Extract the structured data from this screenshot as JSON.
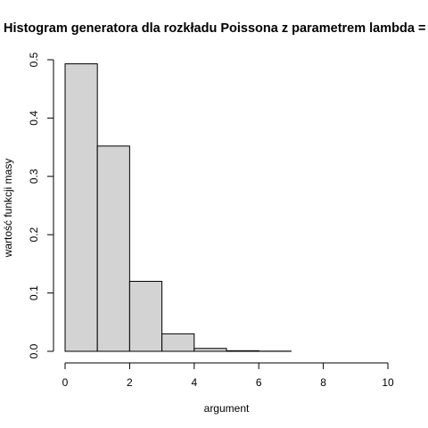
{
  "chart_data": {
    "type": "bar",
    "title": "Histogram generatora dla rozkładu Poissona z parametrem lambda =",
    "xlabel": "argument",
    "ylabel": "wartość funkcji masy",
    "bins": [
      {
        "x0": 0,
        "x1": 1,
        "value": 0.493
      },
      {
        "x0": 1,
        "x1": 2,
        "value": 0.352
      },
      {
        "x0": 2,
        "x1": 3,
        "value": 0.12
      },
      {
        "x0": 3,
        "x1": 4,
        "value": 0.03
      },
      {
        "x0": 4,
        "x1": 5,
        "value": 0.005
      },
      {
        "x0": 5,
        "x1": 6,
        "value": 0.001
      },
      {
        "x0": 6,
        "x1": 7,
        "value": 0.0003
      },
      {
        "x0": 7,
        "x1": 8,
        "value": 0.0
      },
      {
        "x0": 8,
        "x1": 9,
        "value": 0.0
      },
      {
        "x0": 9,
        "x1": 10,
        "value": 0.0
      }
    ],
    "xticks": [
      0,
      2,
      4,
      6,
      8,
      10
    ],
    "xtick_labels": [
      "0",
      "2",
      "4",
      "6",
      "8",
      "10"
    ],
    "yticks": [
      0.0,
      0.1,
      0.2,
      0.3,
      0.4,
      0.5
    ],
    "ytick_labels": [
      "0.0",
      "0.1",
      "0.2",
      "0.3",
      "0.4",
      "0.5"
    ],
    "xlim": [
      0,
      10
    ],
    "ylim": [
      0,
      0.5
    ],
    "grid": false,
    "bar_fill": "#d3d3d3",
    "bar_stroke": "#000000"
  }
}
